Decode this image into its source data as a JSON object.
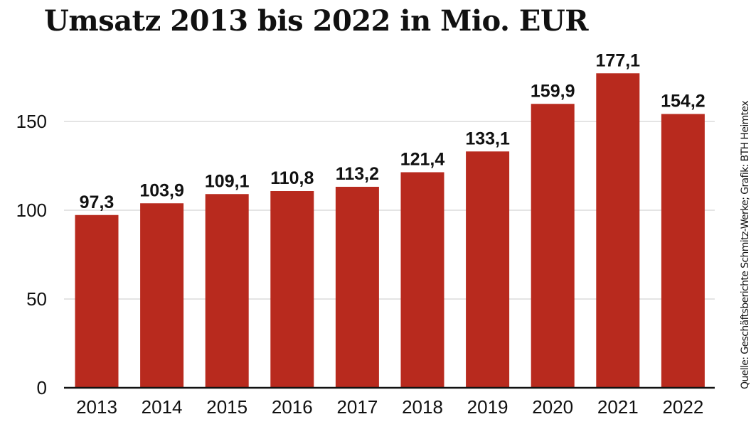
{
  "chart_data": {
    "type": "bar",
    "title": "Umsatz 2013 bis 2022 in Mio. EUR",
    "source": "Quelle: Geschäftsberichte Schmitz-Werke; Grafik: BTH Heimtex",
    "categories": [
      "2013",
      "2014",
      "2015",
      "2016",
      "2017",
      "2018",
      "2019",
      "2020",
      "2021",
      "2022"
    ],
    "values": [
      97.3,
      103.9,
      109.1,
      110.8,
      113.2,
      121.4,
      133.1,
      159.9,
      177.1,
      154.2
    ],
    "data_labels": [
      "97,3",
      "103,9",
      "109,1",
      "110,8",
      "113,2",
      "121,4",
      "133,1",
      "159,9",
      "177,1",
      "154,2"
    ],
    "yticks": [
      0,
      50,
      100,
      150
    ],
    "ylim": [
      0,
      150
    ],
    "grid": true,
    "xlabel": "",
    "ylabel": "",
    "colors": {
      "bar": "#b82a1e",
      "grid": "#c8c8c8",
      "axis": "#111111"
    }
  }
}
